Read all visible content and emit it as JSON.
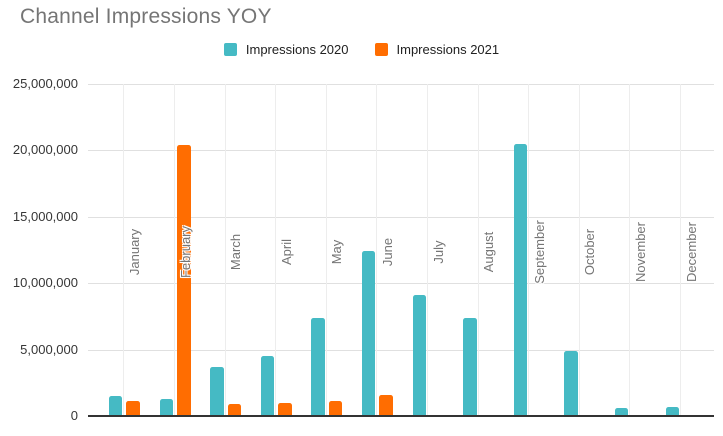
{
  "title": "Channel Impressions YOY",
  "legend": {
    "items": [
      {
        "label": "Impressions 2020",
        "color": "#45BAC4"
      },
      {
        "label": "Impressions 2021",
        "color": "#FF6D01"
      }
    ]
  },
  "colors": {
    "background": "#ffffff",
    "title_text": "#757575",
    "y_axis_label": "#363636",
    "month_label": "#757575",
    "legend_text": "#212121",
    "h_gridline": "#e0e0e0",
    "v_gridline": "#ededed",
    "axis_line": "#333333",
    "series_2020": "#45BAC4",
    "series_2021": "#FF6D01"
  },
  "y_axis": {
    "ticks": [
      {
        "value": 0,
        "label": "0"
      },
      {
        "value": 5000000,
        "label": "5,000,000"
      },
      {
        "value": 10000000,
        "label": "10,000,000"
      },
      {
        "value": 15000000,
        "label": "15,000,000"
      },
      {
        "value": 20000000,
        "label": "20,000,000"
      },
      {
        "value": 25000000,
        "label": "25,000,000"
      }
    ]
  },
  "chart_data": {
    "type": "bar",
    "title": "Channel Impressions YOY",
    "categories": [
      "January",
      "February",
      "March",
      "April",
      "May",
      "June",
      "July",
      "August",
      "September",
      "October",
      "November",
      "December"
    ],
    "series": [
      {
        "name": "Impressions 2020",
        "color": "#45BAC4",
        "values": [
          1500000,
          1300000,
          3700000,
          4500000,
          7400000,
          12400000,
          9100000,
          7400000,
          20500000,
          4900000,
          600000,
          650000
        ]
      },
      {
        "name": "Impressions 2021",
        "color": "#FF6D01",
        "values": [
          1100000,
          20400000,
          900000,
          1000000,
          1100000,
          1600000,
          0,
          0,
          0,
          0,
          0,
          0
        ]
      }
    ],
    "xlabel": "",
    "ylabel": "",
    "ylim": [
      0,
      25000000
    ],
    "y_tick_step": 5000000,
    "grid": true,
    "legend_position": "top-center",
    "x_label_style": "rotated-90-inside-plot"
  }
}
